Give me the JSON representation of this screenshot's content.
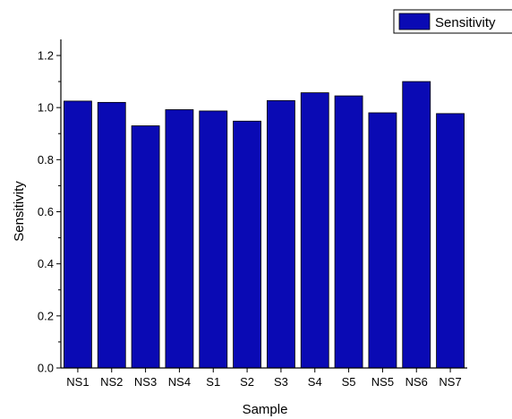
{
  "chart_data": {
    "type": "bar",
    "categories": [
      "NS1",
      "NS2",
      "NS3",
      "NS4",
      "S1",
      "S2",
      "S3",
      "S4",
      "S5",
      "NS5",
      "NS6",
      "NS7"
    ],
    "series": [
      {
        "name": "Sensitivity",
        "color": "#0a0ab4",
        "values": [
          1.025,
          1.02,
          0.93,
          0.992,
          0.987,
          0.948,
          1.027,
          1.057,
          1.045,
          0.98,
          1.1,
          0.977
        ]
      }
    ],
    "xlabel": "Sample",
    "ylabel": "Sensitivity",
    "ylim": [
      0,
      1.2
    ],
    "yticks": [
      "0.0",
      "0.2",
      "0.4",
      "0.6",
      "0.8",
      "1.0",
      "1.2"
    ],
    "grid": false,
    "legend_position": "top-right"
  }
}
